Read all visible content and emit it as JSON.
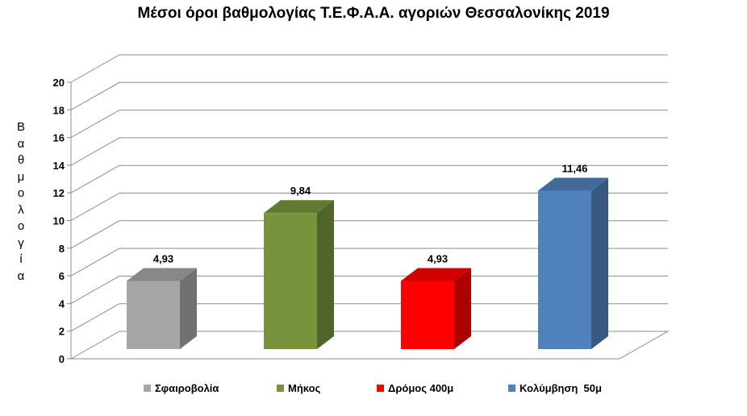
{
  "chart_data": {
    "type": "bar",
    "title": "Μέσοι όροι βαθμολογίας Τ.Ε.Φ.Α.Α. αγοριών Θεσσαλονίκης  2019",
    "ylabel": "Βαθμολογία",
    "xlabel": "",
    "ylim": [
      0,
      20
    ],
    "yticks": [
      0,
      2,
      4,
      6,
      8,
      10,
      12,
      14,
      16,
      18,
      20
    ],
    "grid": true,
    "three_d": true,
    "legend_position": "bottom",
    "categories": [
      "Σφαιροβολία",
      "Μήκος",
      "Δρόμος 400μ",
      "Κολύμβηση  50μ"
    ],
    "values": [
      4.93,
      9.84,
      4.93,
      11.46
    ],
    "data_labels": [
      "4,93",
      "9,84",
      "4,93",
      "11,46"
    ],
    "colors": [
      "#a6a6a6",
      "#77933c",
      "#ff0000",
      "#4f81bd"
    ]
  }
}
